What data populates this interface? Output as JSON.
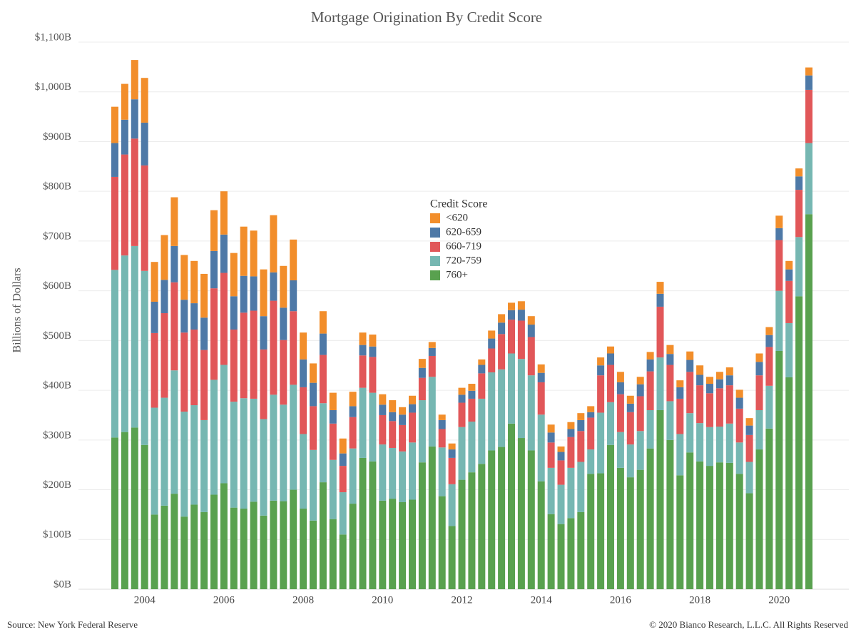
{
  "chart_data": {
    "type": "stacked_bar",
    "title": "Mortgage Origination By Credit Score",
    "y_label": "Billions of Dollars",
    "source": "Source: New York Federal Reserve",
    "copyright": "© 2020 Bianco Research, L.L.C. All Rights Reserved",
    "legend_title": "Credit Score",
    "legend_position": "center",
    "grid": true,
    "ylim": [
      0,
      1100
    ],
    "yticks": [
      {
        "value": 0,
        "label": "$0B"
      },
      {
        "value": 100,
        "label": "$100B"
      },
      {
        "value": 200,
        "label": "$200B"
      },
      {
        "value": 300,
        "label": "$300B"
      },
      {
        "value": 400,
        "label": "$400B"
      },
      {
        "value": 500,
        "label": "$500B"
      },
      {
        "value": 600,
        "label": "$600B"
      },
      {
        "value": 700,
        "label": "$700B"
      },
      {
        "value": 800,
        "label": "$800B"
      },
      {
        "value": 900,
        "label": "$900B"
      },
      {
        "value": 1000,
        "label": "$1,000B"
      },
      {
        "value": 1100,
        "label": "$1,100B"
      }
    ],
    "categories": [
      null,
      null,
      null,
      null,
      "2004",
      null,
      null,
      null,
      null,
      null,
      null,
      null,
      "2006",
      null,
      null,
      null,
      null,
      null,
      null,
      null,
      "2008",
      null,
      null,
      null,
      null,
      null,
      null,
      null,
      "2010",
      null,
      null,
      null,
      null,
      null,
      null,
      null,
      "2012",
      null,
      null,
      null,
      null,
      null,
      null,
      null,
      "2014",
      null,
      null,
      null,
      null,
      null,
      null,
      null,
      "2016",
      null,
      null,
      null,
      null,
      null,
      null,
      null,
      "2018",
      null,
      null,
      null,
      null,
      null,
      null,
      null,
      "2020",
      null,
      null
    ],
    "series": [
      {
        "name": "760+",
        "color": "#59a14f",
        "values": [
          305,
          316,
          325,
          290,
          150,
          168,
          192,
          146,
          170,
          155,
          190,
          213,
          164,
          162,
          176,
          148,
          178,
          177,
          200,
          162,
          138,
          215,
          141,
          110,
          172,
          264,
          257,
          178,
          182,
          175,
          180,
          255,
          287,
          187,
          127,
          220,
          235,
          252,
          279,
          286,
          333,
          304,
          279,
          217,
          151,
          131,
          143,
          155,
          232,
          233,
          290,
          244,
          225,
          240,
          283,
          360,
          300,
          229,
          275,
          257,
          248,
          255,
          254,
          232,
          193,
          281,
          323,
          479,
          426,
          589,
          754
        ]
      },
      {
        "name": "720-759",
        "color": "#76b7b2",
        "values": [
          337,
          355,
          365,
          350,
          215,
          217,
          248,
          211,
          200,
          185,
          231,
          238,
          213,
          222,
          207,
          194,
          213,
          194,
          211,
          150,
          142,
          159,
          119,
          85,
          111,
          141,
          138,
          113,
          102,
          102,
          115,
          125,
          140,
          98,
          84,
          106,
          102,
          131,
          157,
          156,
          141,
          159,
          151,
          134,
          93,
          79,
          101,
          101,
          49,
          122,
          86,
          72,
          66,
          78,
          77,
          106,
          78,
          83,
          79,
          77,
          78,
          72,
          79,
          63,
          63,
          79,
          86,
          121,
          109,
          119,
          143
        ]
      },
      {
        "name": "660-719",
        "color": "#e15759",
        "values": [
          187,
          203,
          216,
          212,
          150,
          170,
          177,
          159,
          152,
          141,
          184,
          185,
          145,
          172,
          177,
          140,
          189,
          130,
          148,
          94,
          88,
          97,
          73,
          53,
          63,
          65,
          72,
          59,
          54,
          53,
          60,
          45,
          42,
          37,
          53,
          49,
          46,
          51,
          48,
          71,
          68,
          77,
          77,
          65,
          51,
          49,
          62,
          62,
          64,
          75,
          75,
          76,
          65,
          70,
          78,
          102,
          73,
          71,
          83,
          76,
          68,
          77,
          77,
          68,
          54,
          70,
          78,
          102,
          85,
          95,
          107
        ]
      },
      {
        "name": "620-659",
        "color": "#4e79a7",
        "values": [
          68,
          70,
          79,
          86,
          63,
          67,
          73,
          66,
          53,
          65,
          75,
          77,
          67,
          74,
          69,
          67,
          57,
          65,
          62,
          56,
          47,
          43,
          27,
          25,
          22,
          21,
          21,
          21,
          18,
          21,
          17,
          20,
          16,
          18,
          17,
          16,
          16,
          17,
          20,
          23,
          19,
          22,
          25,
          19,
          20,
          17,
          16,
          22,
          11,
          20,
          23,
          24,
          17,
          24,
          24,
          26,
          22,
          23,
          24,
          21,
          19,
          18,
          20,
          22,
          19,
          27,
          24,
          24,
          23,
          27,
          29
        ]
      },
      {
        "name": "<620",
        "color": "#f28e2b",
        "values": [
          73,
          72,
          79,
          90,
          80,
          90,
          98,
          90,
          85,
          88,
          82,
          87,
          87,
          99,
          92,
          94,
          115,
          84,
          82,
          54,
          39,
          45,
          35,
          30,
          29,
          25,
          24,
          21,
          24,
          15,
          17,
          18,
          12,
          11,
          12,
          14,
          14,
          11,
          16,
          17,
          15,
          17,
          17,
          17,
          16,
          11,
          14,
          14,
          12,
          16,
          14,
          21,
          16,
          15,
          15,
          24,
          18,
          14,
          17,
          19,
          14,
          15,
          16,
          16,
          15,
          17,
          16,
          25,
          17,
          16,
          16
        ]
      }
    ]
  }
}
